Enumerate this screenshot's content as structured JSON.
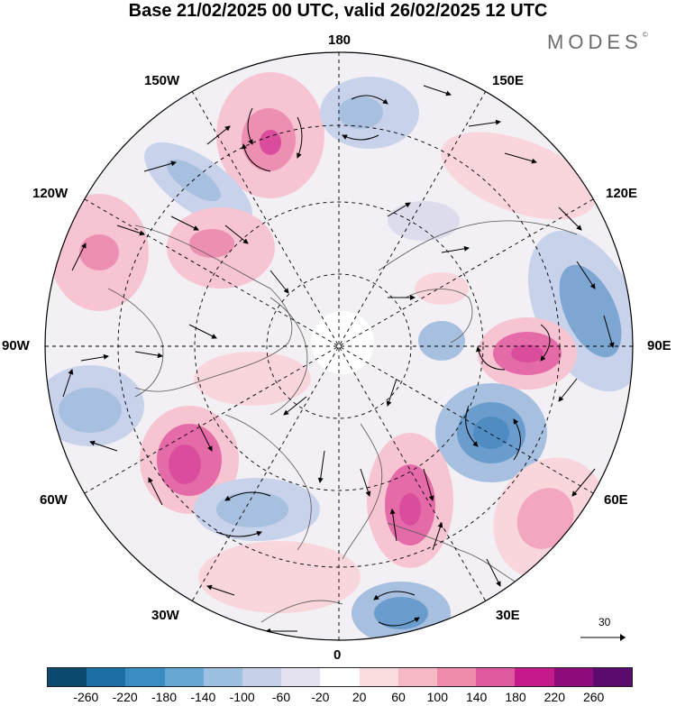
{
  "header": {
    "title": "Base 21/02/2025 00 UTC, valid 26/02/2025 12 UTC",
    "brand": "MODES",
    "brand_mark": "©"
  },
  "longitude_labels": {
    "top": "180",
    "bottom": "0",
    "left": "90W",
    "right": "90E",
    "upper_left_1": "150W",
    "upper_left_2": "120W",
    "upper_right_1": "150E",
    "upper_right_2": "120E",
    "lower_left_1": "60W",
    "lower_left_2": "30W",
    "lower_right_1": "60E",
    "lower_right_2": "30E"
  },
  "reference_vector": {
    "label": "30"
  },
  "colorbar": {
    "colors": [
      "#0b4a6e",
      "#1c6fa3",
      "#3a8dc0",
      "#66a7d3",
      "#9dbfe0",
      "#c6d0e8",
      "#e4e2f0",
      "#ffffff",
      "#fbdde0",
      "#f7b9c3",
      "#f08cab",
      "#e05aa1",
      "#c51b8a",
      "#8e0c7c",
      "#5b0a6e"
    ],
    "ticks": [
      "-260",
      "-220",
      "-180",
      "-140",
      "-100",
      "-60",
      "-20",
      "20",
      "60",
      "100",
      "140",
      "180",
      "220",
      "260"
    ]
  },
  "anomaly_colors": {
    "strong_positive": "#d94d9c",
    "positive": "#f2a6bf",
    "weak_positive": "#f9d6dc",
    "weak_negative": "#dcdcec",
    "negative": "#a8c0e0",
    "strong_negative": "#4f8cc2"
  }
}
